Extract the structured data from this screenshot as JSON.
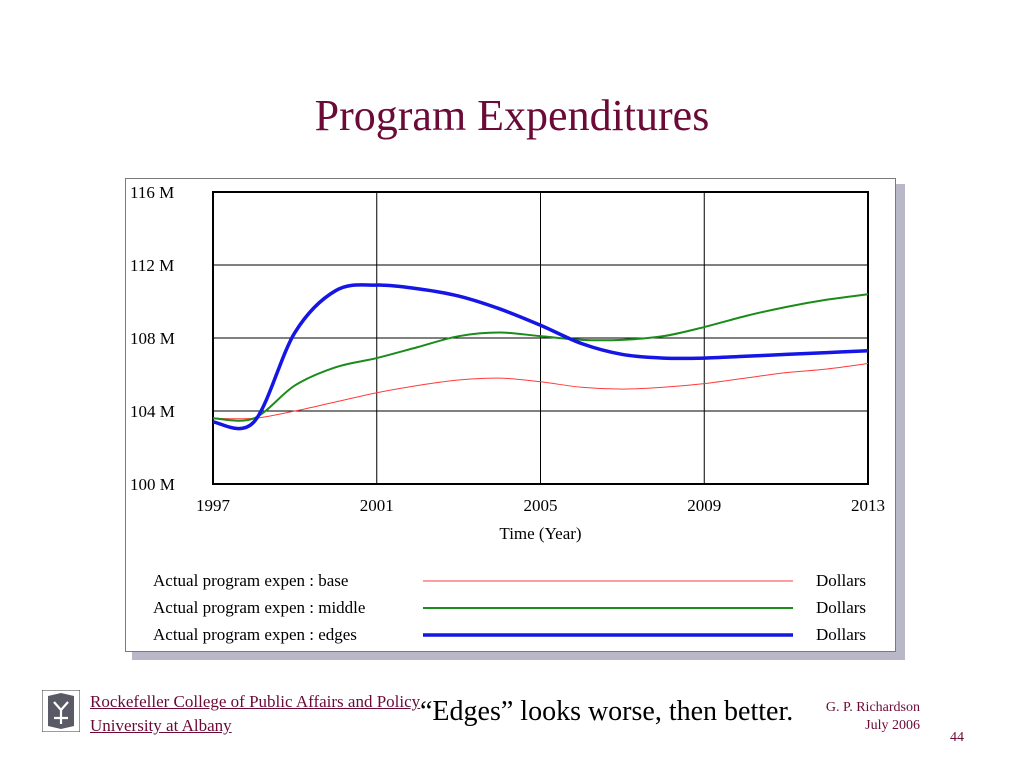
{
  "slide": {
    "title": "Program Expenditures",
    "caption": "“Edges” looks worse, then better.",
    "footer_org": "Rockefeller College of Public Affairs and Policy",
    "footer_univ": "University at Albany",
    "author": "G. P. Richardson",
    "date": "July 2006",
    "number": "44"
  },
  "chart_data": {
    "type": "line",
    "xlabel": "Time (Year)",
    "xlim": [
      1997,
      2013
    ],
    "ylim": [
      100,
      116
    ],
    "xticks": [
      1997,
      2001,
      2005,
      2009,
      2013
    ],
    "yticks": [
      100,
      104,
      108,
      112,
      116
    ],
    "ytick_labels": [
      "100 M",
      "104 M",
      "108 M",
      "112 M",
      "116 M"
    ],
    "grid": true,
    "legend_position": "bottom",
    "series": [
      {
        "name": "Actual program expen : base",
        "unit": "Dollars",
        "color": "#ff3b3b",
        "width": 1,
        "x": [
          1997,
          1998,
          1999,
          2000,
          2001,
          2002,
          2003,
          2004,
          2005,
          2006,
          2007,
          2008,
          2009,
          2010,
          2011,
          2012,
          2013
        ],
        "y": [
          103.6,
          103.6,
          104.0,
          104.5,
          105.0,
          105.4,
          105.7,
          105.8,
          105.6,
          105.3,
          105.2,
          105.3,
          105.5,
          105.8,
          106.1,
          106.3,
          106.6
        ]
      },
      {
        "name": "Actual program expen : middle",
        "unit": "Dollars",
        "color": "#1a8c1a",
        "width": 2,
        "x": [
          1997,
          1998,
          1999,
          2000,
          2001,
          2002,
          2003,
          2004,
          2005,
          2006,
          2007,
          2008,
          2009,
          2010,
          2011,
          2012,
          2013
        ],
        "y": [
          103.6,
          103.6,
          105.4,
          106.4,
          106.9,
          107.5,
          108.1,
          108.3,
          108.1,
          107.9,
          107.9,
          108.1,
          108.6,
          109.2,
          109.7,
          110.1,
          110.4
        ]
      },
      {
        "name": "Actual program expen : edges",
        "unit": "Dollars",
        "color": "#1515e6",
        "width": 3.5,
        "x": [
          1997,
          1998,
          1999,
          2000,
          2001,
          2002,
          2003,
          2004,
          2005,
          2006,
          2007,
          2008,
          2009,
          2010,
          2011,
          2012,
          2013
        ],
        "y": [
          103.4,
          103.4,
          108.3,
          110.6,
          110.9,
          110.7,
          110.3,
          109.6,
          108.7,
          107.7,
          107.1,
          106.9,
          106.9,
          107.0,
          107.1,
          107.2,
          107.3
        ]
      }
    ]
  }
}
